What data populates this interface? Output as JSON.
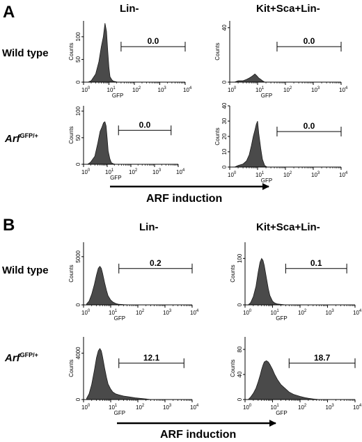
{
  "panels": [
    {
      "letter": "A",
      "col_titles": [
        "Lin-",
        "Kit+Sca+Lin-"
      ],
      "row_labels": [
        {
          "prefix": "Wild type",
          "sup": ""
        },
        {
          "prefix": "Arf",
          "sup": "GFP/+"
        }
      ],
      "induction_label": "ARF induction"
    },
    {
      "letter": "B",
      "col_titles": [
        "Lin-",
        "Kit+Sca+Lin-"
      ],
      "row_labels": [
        {
          "prefix": "Wild type",
          "sup": ""
        },
        {
          "prefix": "Arf",
          "sup": "GFP/+"
        }
      ],
      "induction_label": "ARF induction"
    }
  ],
  "chart_data": [
    {
      "id": "A-wt-lin",
      "type": "area",
      "panel": "A",
      "row": "Wild type",
      "column": "Lin-",
      "xlabel": "GFP",
      "ylabel": "Counts",
      "xscale": "log",
      "xlim": [
        1,
        10000
      ],
      "xtick_exponents": [
        "0",
        "1",
        "2",
        "3",
        "4"
      ],
      "yticks": [
        {
          "v": 0,
          "label": "0"
        },
        {
          "v": 50,
          "label": "50"
        },
        {
          "v": 100,
          "label": "100"
        }
      ],
      "ylim": [
        0,
        135
      ],
      "histogram": {
        "x": [
          1.5,
          2,
          3,
          4,
          5,
          6,
          7,
          8,
          9,
          10,
          11,
          13,
          15,
          18,
          22,
          28
        ],
        "y": [
          0,
          3,
          18,
          45,
          78,
          100,
          130,
          112,
          68,
          32,
          12,
          5,
          2,
          1,
          0,
          0
        ]
      },
      "gate": {
        "x_start": 30,
        "x_end": 10000,
        "value": "0.0"
      }
    },
    {
      "id": "A-wt-ksl",
      "type": "area",
      "panel": "A",
      "row": "Wild type",
      "column": "Kit+Sca+Lin-",
      "xlabel": "GFP",
      "ylabel": "Counts",
      "xscale": "log",
      "xlim": [
        1,
        10000
      ],
      "xtick_exponents": [
        "0",
        "1",
        "2",
        "3",
        "4"
      ],
      "yticks": [
        {
          "v": 0,
          "label": "0"
        },
        {
          "v": 40,
          "label": "40"
        }
      ],
      "ylim": [
        0,
        45
      ],
      "histogram": {
        "x": [
          1.5,
          2,
          3,
          4,
          5,
          6,
          7,
          8,
          9,
          10,
          11,
          13,
          15,
          18,
          22,
          28
        ],
        "y": [
          0,
          1,
          1,
          2,
          3,
          4,
          5,
          6,
          5,
          4,
          3,
          2,
          1,
          0,
          0,
          0
        ]
      },
      "gate": {
        "x_start": 50,
        "x_end": 10000,
        "value": "0.0"
      }
    },
    {
      "id": "A-arf-lin",
      "type": "area",
      "panel": "A",
      "row": "ArfGFP/+",
      "column": "Lin-",
      "xlabel": "GFP",
      "ylabel": "Counts",
      "xscale": "log",
      "xlim": [
        1,
        10000
      ],
      "xtick_exponents": [
        "0",
        "1",
        "2",
        "3",
        "4"
      ],
      "yticks": [
        {
          "v": 0,
          "label": "0"
        },
        {
          "v": 50,
          "label": "50"
        },
        {
          "v": 100,
          "label": "100"
        }
      ],
      "ylim": [
        0,
        110
      ],
      "histogram": {
        "x": [
          1.5,
          2,
          3,
          4,
          5,
          6,
          7,
          8,
          9,
          10,
          11,
          13,
          15,
          18,
          22
        ],
        "y": [
          0,
          4,
          15,
          40,
          62,
          70,
          78,
          80,
          72,
          48,
          25,
          10,
          3,
          1,
          0
        ]
      },
      "gate": {
        "x_start": 30,
        "x_end": 5000,
        "value": "0.0"
      }
    },
    {
      "id": "A-arf-ksl",
      "type": "area",
      "panel": "A",
      "row": "ArfGFP/+",
      "column": "Kit+Sca+Lin-",
      "xlabel": "GFP",
      "ylabel": "Counts",
      "xscale": "log",
      "xlim": [
        1,
        10000
      ],
      "xtick_exponents": [
        "0",
        "1",
        "2",
        "3",
        "4"
      ],
      "yticks": [
        {
          "v": 0,
          "label": "0"
        },
        {
          "v": 10,
          "label": "10"
        },
        {
          "v": 20,
          "label": "20"
        },
        {
          "v": 30,
          "label": "30"
        },
        {
          "v": 40,
          "label": "40"
        }
      ],
      "ylim": [
        0,
        40
      ],
      "histogram": {
        "x": [
          1.5,
          2,
          3,
          4,
          5,
          6,
          7,
          8,
          9,
          10,
          11,
          13,
          15,
          18,
          22
        ],
        "y": [
          0,
          1,
          2,
          4,
          8,
          14,
          20,
          24,
          28,
          30,
          22,
          12,
          5,
          1,
          0
        ]
      },
      "gate": {
        "x_start": 50,
        "x_end": 10000,
        "value": "0.0"
      }
    },
    {
      "id": "B-wt-lin",
      "type": "area",
      "panel": "B",
      "row": "Wild type",
      "column": "Lin-",
      "xlabel": "GFP",
      "ylabel": "Counts",
      "xscale": "log",
      "xlim": [
        1,
        10000
      ],
      "xtick_exponents": [
        "0",
        "1",
        "2",
        "3",
        "4"
      ],
      "yticks": [
        {
          "v": 0,
          "label": "0"
        },
        {
          "v": 5000,
          "label": "5000"
        }
      ],
      "ylim": [
        0,
        6500
      ],
      "histogram": {
        "x": [
          1.3,
          1.6,
          2,
          2.5,
          3,
          3.5,
          4,
          4.5,
          5,
          6,
          7,
          8,
          10,
          12,
          15,
          20,
          30,
          50
        ],
        "y": [
          100,
          400,
          1100,
          2100,
          3100,
          3800,
          4000,
          3800,
          3300,
          2300,
          1500,
          950,
          500,
          300,
          150,
          60,
          20,
          0
        ]
      },
      "gate": {
        "x_start": 20,
        "x_end": 10000,
        "value": "0.2"
      }
    },
    {
      "id": "B-wt-ksl",
      "type": "area",
      "panel": "B",
      "row": "Wild type",
      "column": "Kit+Sca+Lin-",
      "xlabel": "GFP",
      "ylabel": "Counts",
      "xscale": "log",
      "xlim": [
        1,
        10000
      ],
      "xtick_exponents": [
        "0",
        "1",
        "2",
        "3",
        "4"
      ],
      "yticks": [
        {
          "v": 0,
          "label": "0"
        },
        {
          "v": 100,
          "label": "100"
        }
      ],
      "ylim": [
        0,
        135
      ],
      "histogram": {
        "x": [
          1.3,
          1.6,
          2,
          2.5,
          3,
          3.5,
          4,
          4.5,
          5,
          6,
          7,
          8,
          10,
          12,
          15,
          20,
          30
        ],
        "y": [
          0,
          5,
          18,
          40,
          70,
          92,
          100,
          96,
          85,
          58,
          35,
          20,
          8,
          4,
          2,
          1,
          0
        ]
      },
      "gate": {
        "x_start": 30,
        "x_end": 5000,
        "value": "0.1"
      }
    },
    {
      "id": "B-arf-lin",
      "type": "area",
      "panel": "B",
      "row": "ArfGFP/+",
      "column": "Lin-",
      "xlabel": "GFP",
      "ylabel": "Counts",
      "xscale": "log",
      "xlim": [
        1,
        10000
      ],
      "xtick_exponents": [
        "0",
        "1",
        "2",
        "3",
        "4"
      ],
      "yticks": [
        {
          "v": 0,
          "label": "0"
        },
        {
          "v": 4000,
          "label": "4000"
        }
      ],
      "ylim": [
        0,
        5400
      ],
      "histogram": {
        "x": [
          1.3,
          1.6,
          2,
          2.5,
          3,
          3.5,
          4,
          4.5,
          5,
          6,
          7,
          8,
          10,
          12,
          15,
          20,
          30,
          50,
          80,
          120,
          200,
          300
        ],
        "y": [
          100,
          500,
          1300,
          2500,
          3600,
          4200,
          4400,
          4200,
          3700,
          2700,
          1900,
          1350,
          900,
          650,
          500,
          400,
          300,
          220,
          150,
          100,
          50,
          0
        ]
      },
      "gate": {
        "x_start": 20,
        "x_end": 5000,
        "value": "12.1"
      }
    },
    {
      "id": "B-arf-ksl",
      "type": "area",
      "panel": "B",
      "row": "ArfGFP/+",
      "column": "Kit+Sca+Lin-",
      "xlabel": "GFP",
      "ylabel": "Counts",
      "xscale": "log",
      "xlim": [
        1,
        10000
      ],
      "xtick_exponents": [
        "0",
        "1",
        "2",
        "3",
        "4"
      ],
      "yticks": [
        {
          "v": 0,
          "label": "0"
        },
        {
          "v": 40,
          "label": "40"
        },
        {
          "v": 80,
          "label": "80"
        }
      ],
      "ylim": [
        0,
        100
      ],
      "histogram": {
        "x": [
          1.3,
          1.6,
          2,
          2.5,
          3,
          3.5,
          4,
          4.5,
          5,
          6,
          7,
          8,
          10,
          12,
          15,
          20,
          30,
          40,
          60,
          100,
          150,
          200,
          300,
          500
        ],
        "y": [
          0,
          4,
          10,
          18,
          28,
          38,
          48,
          55,
          60,
          62,
          60,
          56,
          48,
          40,
          32,
          24,
          17,
          12,
          8,
          5,
          3,
          2,
          1,
          0
        ]
      },
      "gate": {
        "x_start": 40,
        "x_end": 10000,
        "value": "18.7"
      }
    }
  ]
}
